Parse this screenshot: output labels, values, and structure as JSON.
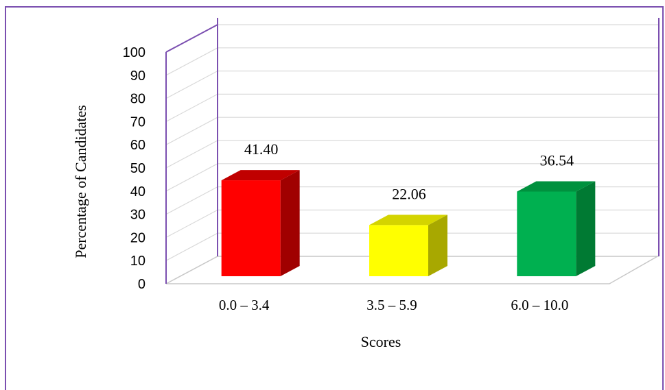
{
  "chart_data": {
    "type": "bar",
    "style": "3d",
    "categories": [
      "0.0 – 3.4",
      "3.5 – 5.9",
      "6.0 – 10.0"
    ],
    "values": [
      41.4,
      22.06,
      36.54
    ],
    "value_labels": [
      "41.40",
      "22.06",
      "36.54"
    ],
    "colors": [
      "#ff0000",
      "#ffff00",
      "#00b050"
    ],
    "side_colors": [
      "#a00000",
      "#a8a800",
      "#007a33"
    ],
    "top_colors": [
      "#c00000",
      "#d4d400",
      "#00913e"
    ],
    "xlabel": "Scores",
    "ylabel": "Percentage of Candidates",
    "ylim": [
      0,
      100
    ],
    "yticks": [
      "0",
      "10",
      "20",
      "30",
      "40",
      "50",
      "60",
      "70",
      "80",
      "90",
      "100"
    ],
    "grid": true,
    "frame_color": "#7b4fb0"
  }
}
